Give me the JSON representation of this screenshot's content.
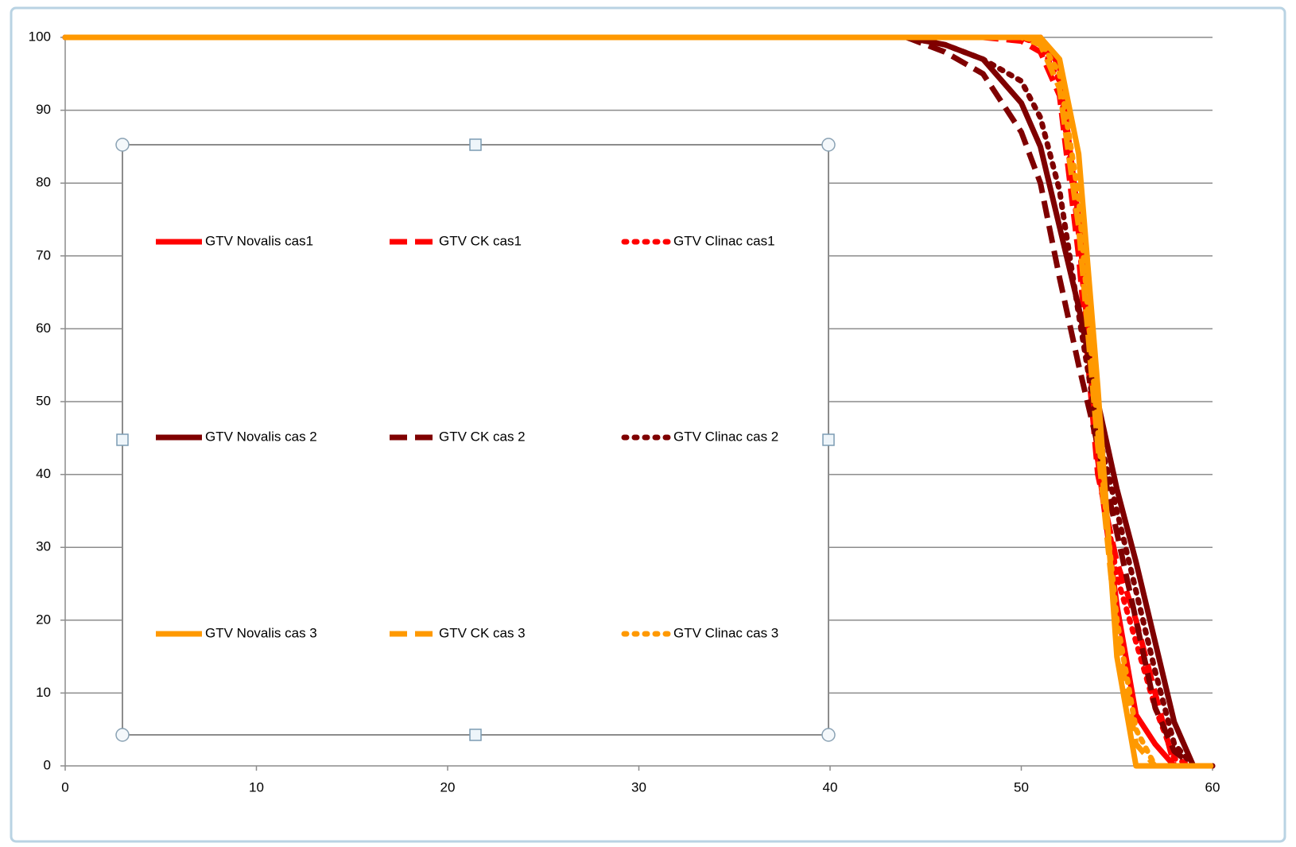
{
  "chart_data": {
    "type": "line",
    "x": [
      0,
      44,
      46,
      48,
      50,
      51,
      52,
      53,
      54,
      55,
      56,
      57,
      58,
      59,
      60
    ],
    "series": [
      {
        "name": "GTV Novalis cas1",
        "color": "#ff0000",
        "dash": "solid",
        "values": [
          100,
          100,
          100,
          100,
          100,
          100,
          96,
          75,
          42,
          22,
          7,
          3,
          0,
          0,
          0
        ]
      },
      {
        "name": "GTV CK cas1",
        "color": "#ff0000",
        "dash": "dashed",
        "values": [
          100,
          100,
          100,
          100,
          99.5,
          98,
          92,
          70,
          40,
          28,
          20,
          10,
          0,
          0,
          0
        ]
      },
      {
        "name": "GTV Clinac cas1",
        "color": "#ff0000",
        "dash": "dotted",
        "values": [
          100,
          100,
          100,
          100,
          100,
          99,
          94,
          73,
          42,
          26,
          17,
          8,
          1,
          0,
          0
        ]
      },
      {
        "name": "GTV Novalis cas 2",
        "color": "#7f0000",
        "dash": "solid",
        "values": [
          100,
          100,
          99,
          97,
          91,
          85,
          74,
          63,
          50,
          38,
          28,
          17,
          6,
          0,
          0
        ]
      },
      {
        "name": "GTV CK cas 2",
        "color": "#7f0000",
        "dash": "dashed",
        "values": [
          100,
          100,
          98,
          95,
          87,
          80,
          67,
          55,
          44,
          32,
          20,
          8,
          2,
          0,
          0
        ]
      },
      {
        "name": "GTV Clinac cas 2",
        "color": "#7f0000",
        "dash": "dotted",
        "values": [
          100,
          100,
          99,
          97,
          94,
          89,
          79,
          62,
          46,
          35,
          24,
          13,
          3,
          0,
          0
        ]
      },
      {
        "name": "GTV Novalis cas 3",
        "color": "#ff9900",
        "dash": "solid",
        "values": [
          100,
          100,
          100,
          100,
          100,
          100,
          97,
          84,
          52,
          15,
          0,
          0,
          0,
          0,
          0
        ]
      },
      {
        "name": "GTV CK cas 3",
        "color": "#ff9900",
        "dash": "dashed",
        "values": [
          100,
          100,
          100,
          100,
          100,
          99,
          93,
          74,
          44,
          18,
          3,
          0,
          0,
          0,
          0
        ]
      },
      {
        "name": "GTV Clinac cas 3",
        "color": "#ff9900",
        "dash": "dotted",
        "values": [
          100,
          100,
          100,
          100,
          100,
          99.5,
          95,
          78,
          46,
          20,
          5,
          0,
          0,
          0,
          0
        ]
      }
    ],
    "xlim": [
      0,
      60
    ],
    "xticks": [
      0,
      10,
      20,
      30,
      40,
      50,
      60
    ],
    "ylim": [
      0,
      100
    ],
    "yticks": [
      0,
      10,
      20,
      30,
      40,
      50,
      60,
      70,
      80,
      90,
      100
    ],
    "grid": true
  }
}
